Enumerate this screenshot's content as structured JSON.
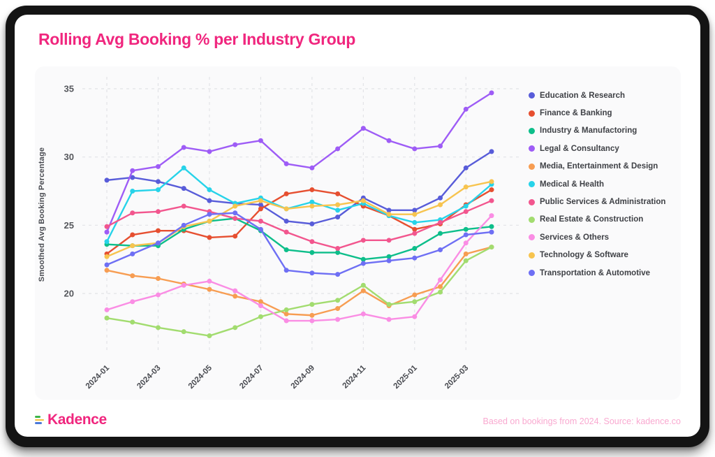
{
  "page": {
    "title": "Rolling Avg Booking % per Industry Group"
  },
  "footer": {
    "logo_text": "Kadence",
    "source_text": "Based on bookings from 2024. Source: kadence.co"
  },
  "colors": {
    "title_accent": "#F0267E",
    "panel_background": "#FAFAFB",
    "gridline": "#E2E3E7",
    "tick_text": "#55575C",
    "legend_text": "#3F4146",
    "source_text": "#F9A9D0",
    "frame": "#141414"
  },
  "chart_data": {
    "type": "line",
    "title": "Rolling Avg Booking % per Industry Group",
    "xlabel": "",
    "ylabel": "Smoothed Avg Booking Percentage",
    "grid": "dashed",
    "legend_position": "right",
    "ylim": [
      15.6,
      35.9
    ],
    "yticks": [
      20,
      25,
      30,
      35
    ],
    "x": [
      "2024-01",
      "2024-02",
      "2024-03",
      "2024-04",
      "2024-05",
      "2024-06",
      "2024-07",
      "2024-08",
      "2024-09",
      "2024-10",
      "2024-11",
      "2024-12",
      "2025-01",
      "2025-02",
      "2025-03",
      "2025-04"
    ],
    "x_tick_labels": [
      "2024-01",
      "2024-03",
      "2024-05",
      "2024-07",
      "2024-09",
      "2024-11",
      "2025-01",
      "2025-03"
    ],
    "series": [
      {
        "name": "Education & Research",
        "color": "#585CD9",
        "values": [
          28.3,
          28.5,
          28.2,
          27.7,
          26.8,
          26.6,
          26.5,
          25.3,
          25.1,
          25.6,
          27.0,
          26.1,
          26.1,
          27.0,
          29.2,
          30.4
        ]
      },
      {
        "name": "Finance & Banking",
        "color": "#E64F30",
        "values": [
          22.9,
          24.3,
          24.6,
          24.6,
          24.1,
          24.2,
          26.2,
          27.3,
          27.6,
          27.3,
          26.4,
          25.7,
          24.7,
          25.1,
          26.5,
          27.6
        ]
      },
      {
        "name": "Industry & Manufactoring",
        "color": "#0DBE8A",
        "values": [
          23.6,
          23.5,
          23.5,
          24.7,
          25.3,
          25.5,
          24.6,
          23.2,
          23.0,
          23.0,
          22.5,
          22.7,
          23.3,
          24.4,
          24.7,
          24.9
        ]
      },
      {
        "name": "Legal & Consultancy",
        "color": "#9E5CF6",
        "values": [
          24.5,
          29.0,
          29.3,
          30.7,
          30.4,
          30.9,
          31.2,
          29.5,
          29.2,
          30.6,
          32.1,
          31.2,
          30.6,
          30.8,
          33.5,
          34.7
        ]
      },
      {
        "name": "Media, Entertainment & Design",
        "color": "#F79D52",
        "values": [
          21.7,
          21.3,
          21.1,
          20.7,
          20.3,
          19.8,
          19.4,
          18.5,
          18.4,
          18.9,
          20.2,
          19.1,
          19.9,
          20.5,
          22.9,
          23.4
        ]
      },
      {
        "name": "Medical & Health",
        "color": "#27D3E9",
        "values": [
          23.8,
          27.5,
          27.6,
          29.2,
          27.6,
          26.6,
          27.0,
          26.2,
          26.7,
          26.1,
          26.6,
          25.7,
          25.2,
          25.4,
          26.4,
          28.0
        ]
      },
      {
        "name": "Public Services & Administration",
        "color": "#F2568E",
        "values": [
          24.9,
          25.9,
          26.0,
          26.4,
          26.0,
          25.5,
          25.3,
          24.5,
          23.8,
          23.3,
          23.9,
          23.9,
          24.4,
          25.2,
          26.0,
          26.8
        ]
      },
      {
        "name": "Real Estate & Construction",
        "color": "#A2DC6F",
        "values": [
          18.2,
          17.9,
          17.5,
          17.2,
          16.9,
          17.5,
          18.3,
          18.8,
          19.2,
          19.5,
          20.6,
          19.2,
          19.4,
          20.1,
          22.4,
          23.4
        ]
      },
      {
        "name": "Services & Others",
        "color": "#FA8DE4",
        "values": [
          18.8,
          19.4,
          19.9,
          20.6,
          20.9,
          20.2,
          19.1,
          18.0,
          18.0,
          18.1,
          18.5,
          18.1,
          18.3,
          21.0,
          23.7,
          25.7
        ]
      },
      {
        "name": "Technology & Software",
        "color": "#F7C44F",
        "values": [
          22.7,
          23.5,
          23.7,
          24.9,
          25.3,
          26.4,
          26.8,
          26.2,
          26.4,
          26.5,
          26.8,
          25.8,
          25.8,
          26.5,
          27.8,
          28.2
        ]
      },
      {
        "name": "Transportation & Automotive",
        "color": "#6E6FF4",
        "values": [
          22.1,
          22.9,
          23.7,
          25.0,
          25.8,
          25.9,
          24.7,
          21.7,
          21.5,
          21.4,
          22.2,
          22.4,
          22.6,
          23.2,
          24.3,
          24.5
        ]
      }
    ]
  }
}
